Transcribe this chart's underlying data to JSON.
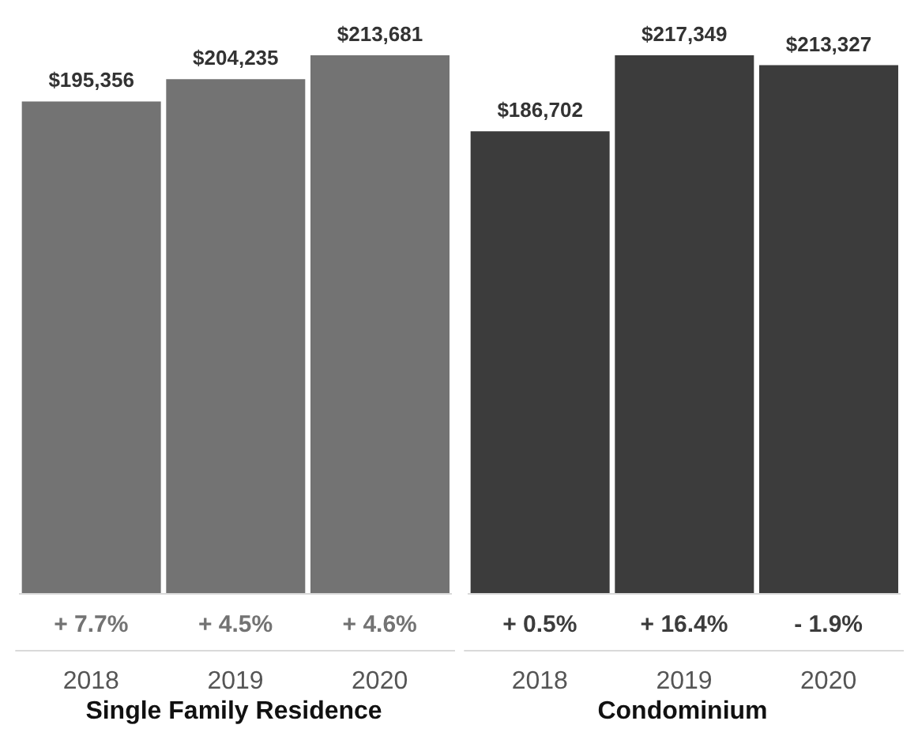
{
  "chart_data": [
    {
      "type": "bar",
      "xlabel": "Single Family Residence",
      "categories": [
        "2018",
        "2019",
        "2020"
      ],
      "values": [
        195356,
        204235,
        213681
      ],
      "color": "#737373",
      "data_labels": true,
      "value_labels": [
        "$195,356",
        "$204,235",
        "$213,681"
      ],
      "annotations": [
        "+ 7.7%",
        "+ 4.5%",
        "+ 4.6%"
      ]
    },
    {
      "type": "bar",
      "xlabel": "Condominium",
      "categories": [
        "2018",
        "2019",
        "2020"
      ],
      "values": [
        186702,
        217349,
        213327
      ],
      "color": "#3c3c3c",
      "data_labels": true,
      "value_labels": [
        "$186,702",
        "$217,349",
        "$213,327"
      ],
      "annotations": [
        "+ 0.5%",
        "+ 16.4%",
        "- 1.9%"
      ]
    }
  ]
}
